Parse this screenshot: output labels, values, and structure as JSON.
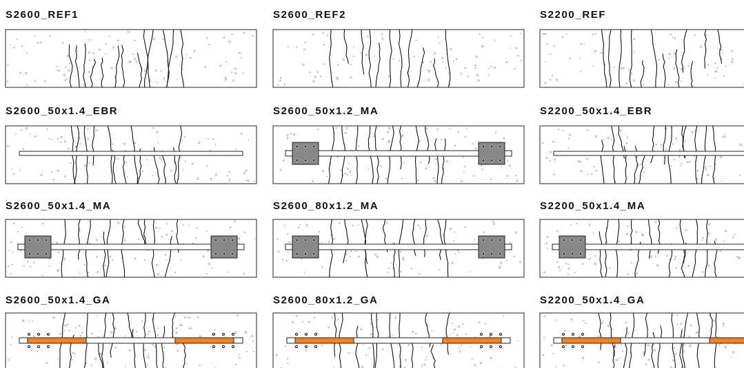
{
  "panels": [
    {
      "label": "S2600_REF1"
    },
    {
      "label": "S2600_REF2"
    },
    {
      "label": "S2200_REF"
    },
    {
      "label": "S2600_50x1.4_EBR"
    },
    {
      "label": "S2600_50x1.2_MA"
    },
    {
      "label": "S2200_50x1.4_EBR"
    },
    {
      "label": "S2600_50x1.4_MA"
    },
    {
      "label": "S2600_80x1.2_MA"
    },
    {
      "label": "S2200_50x1.4_MA"
    },
    {
      "label": "S2600_50x1.4_GA"
    },
    {
      "label": "S2600_80x1.2_GA"
    },
    {
      "label": "S2200_50x1.4_GA"
    }
  ]
}
